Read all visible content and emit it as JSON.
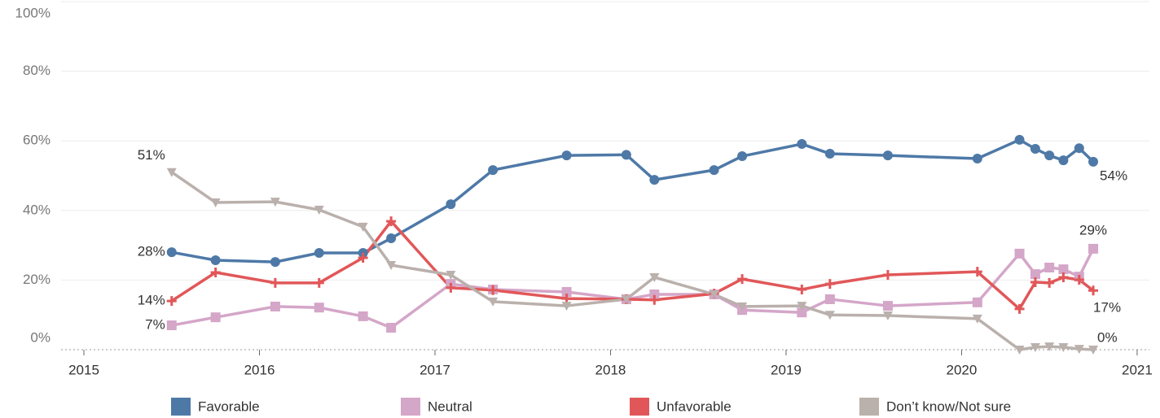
{
  "chart_data": {
    "type": "line",
    "x": [
      2015.5,
      2015.75,
      2016.09,
      2016.34,
      2016.59,
      2016.75,
      2017.09,
      2017.33,
      2017.75,
      2018.09,
      2018.25,
      2018.59,
      2018.75,
      2019.09,
      2019.25,
      2019.58,
      2020.09,
      2020.33,
      2020.42,
      2020.5,
      2020.58,
      2020.67,
      2020.75
    ],
    "series": [
      {
        "name": "Favorable",
        "color": "#4e79a7",
        "marker": "circle",
        "values": [
          28,
          25.7,
          25.2,
          27.8,
          27.8,
          32,
          41.8,
          51.6,
          55.8,
          56,
          48.8,
          51.6,
          55.6,
          59.1,
          56.3,
          55.8,
          54.9,
          60.3,
          57.7,
          55.8,
          54.4,
          57.9,
          54
        ],
        "value_labels": [
          "28%",
          null,
          null,
          null,
          null,
          null,
          null,
          null,
          null,
          null,
          null,
          null,
          null,
          null,
          null,
          null,
          null,
          null,
          null,
          null,
          null,
          null,
          "54%"
        ]
      },
      {
        "name": "Neutral",
        "color": "#d4a6c8",
        "marker": "square",
        "values": [
          7,
          9.3,
          12.4,
          12.1,
          9.6,
          6.3,
          18.9,
          17.3,
          16.6,
          14.5,
          15.9,
          15.9,
          11.4,
          10.7,
          14.5,
          12.6,
          13.6,
          27.6,
          21.7,
          23.6,
          23.1,
          21,
          29
        ],
        "value_labels": [
          "7%",
          null,
          null,
          null,
          null,
          null,
          null,
          null,
          null,
          null,
          null,
          null,
          null,
          null,
          null,
          null,
          null,
          null,
          null,
          null,
          null,
          null,
          "29%"
        ]
      },
      {
        "name": "Unfavorable",
        "color": "#e15759",
        "marker": "plus",
        "values": [
          14,
          22.2,
          19.2,
          19.2,
          26.4,
          36.9,
          17.8,
          17.1,
          14.7,
          14.5,
          14.3,
          16.1,
          20.3,
          17.3,
          18.9,
          21.5,
          22.4,
          11.7,
          19.4,
          19.2,
          20.8,
          20.1,
          17
        ],
        "value_labels": [
          "14%",
          null,
          null,
          null,
          null,
          null,
          null,
          null,
          null,
          null,
          null,
          null,
          null,
          null,
          null,
          null,
          null,
          null,
          null,
          null,
          null,
          null,
          "17%"
        ]
      },
      {
        "name": "Don’t know/Not sure",
        "color": "#bab0ac",
        "marker": "triangle-down",
        "values": [
          51,
          42.3,
          42.5,
          40.2,
          35.3,
          24.3,
          21.5,
          13.8,
          12.6,
          14.5,
          20.8,
          15.9,
          12.4,
          12.6,
          10,
          9.8,
          8.9,
          0,
          0.7,
          0.9,
          0.7,
          0.2,
          0
        ],
        "value_labels": [
          "51%",
          null,
          null,
          null,
          null,
          null,
          null,
          null,
          null,
          null,
          null,
          null,
          null,
          null,
          null,
          null,
          null,
          null,
          null,
          null,
          null,
          null,
          "0%"
        ]
      }
    ],
    "xlim": [
      2014.87,
      2021.07
    ],
    "xticks": [
      2015,
      2016,
      2017,
      2018,
      2019,
      2020,
      2021
    ],
    "ylim": [
      0,
      100
    ],
    "yticks": [
      {
        "value": 0,
        "label": "0%"
      },
      {
        "value": 20,
        "label": "20%"
      },
      {
        "value": 40,
        "label": "40%"
      },
      {
        "value": 60,
        "label": "60%"
      },
      {
        "value": 80,
        "label": "80%"
      },
      {
        "value": 100,
        "label": "100%"
      }
    ],
    "grid": true,
    "legend": "bottom"
  }
}
